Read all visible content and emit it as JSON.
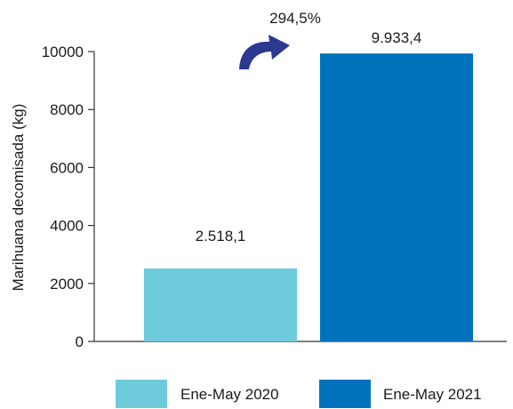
{
  "chart_data": {
    "type": "bar",
    "categories": [
      "Ene-May 2020",
      "Ene-May 2021"
    ],
    "values": [
      2518.1,
      9933.4
    ],
    "data_labels": [
      "2.518,1",
      "9.933,4"
    ],
    "colors": [
      "#6ecbdb",
      "#0072bc"
    ],
    "title": "",
    "xlabel": "",
    "ylabel": "Marihuana decomisada (kg)",
    "ylim": [
      0,
      10000
    ],
    "yticks": [
      0,
      2000,
      4000,
      6000,
      8000,
      10000
    ],
    "ytick_labels": [
      "0",
      "2000",
      "4000",
      "6000",
      "8000",
      "10000"
    ],
    "grid": false,
    "legend": {
      "position": "bottom",
      "entries": [
        "Ene-May 2020",
        "Ene-May 2021"
      ]
    },
    "annotation": {
      "text": "294,5%",
      "arrow_color": "#2b3990",
      "icon": "curved-arrow-icon"
    }
  }
}
